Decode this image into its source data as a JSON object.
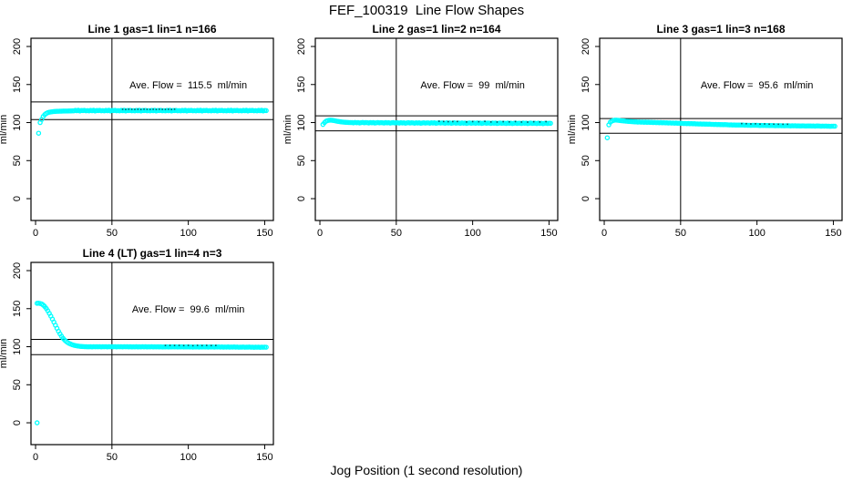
{
  "figure": {
    "title": "FEF_100319  Line Flow Shapes",
    "xlabel": "Jog Position (1 second resolution)",
    "background_color": "#ffffff",
    "marker_color": "#00ffff",
    "line_color": "#000000",
    "speck_color": "#00606a"
  },
  "axes": {
    "x_ticks": [
      0,
      50,
      100,
      150
    ],
    "y_ticks": [
      0,
      50,
      100,
      150,
      200
    ],
    "ylabel": "ml/min",
    "x_range": [
      -3,
      155.7
    ],
    "y_range": [
      -28.7,
      210.8
    ],
    "grid": false
  },
  "chart_data": [
    {
      "type": "scatter",
      "title": "Line 1 gas=1 lin=1 n=166",
      "annotation": "Ave. Flow =  115.5  ml/min",
      "ave_flow_ml_min": 115.5,
      "ref_lines_y": [
        127.05,
        103.95
      ],
      "vline_x": 50,
      "x_start": 2,
      "y": [
        86,
        100,
        104,
        108,
        110.5,
        112,
        113,
        113.6,
        114,
        114.3,
        114.5,
        114.7,
        114.8,
        114.9,
        115,
        115,
        115.1,
        115.1,
        115.2,
        115.2,
        115.3,
        115.3,
        115.4,
        115.4,
        116,
        115.6,
        116.2,
        115.3,
        115.9,
        115.7,
        116.1,
        115.5,
        115.8,
        115.4,
        116,
        115.6,
        116.2,
        115.3,
        115.9,
        115.7,
        116.1,
        115.5,
        115.8,
        115.4,
        116,
        115.6,
        116.2,
        115.3,
        115.9,
        115.7,
        116.1,
        115.5,
        115.8,
        115.4,
        116,
        115.6,
        116.2,
        115.3,
        115.9,
        115.7,
        116.1,
        115.5,
        115.8,
        115.4,
        116,
        115.6,
        116.2,
        115.3,
        115.9,
        115.7,
        116.1,
        115.5,
        115.8,
        115.4,
        116,
        115.6,
        116.2,
        115.3,
        115.9,
        115.7,
        116.1,
        115.5,
        115.8,
        115.4,
        116,
        115.6,
        116.2,
        115.3,
        115.9,
        115.7,
        116.1,
        115.5,
        115.8,
        115.4,
        116,
        115.6,
        116.2,
        115.3,
        115.9,
        115.7,
        116.1,
        115.5,
        115.8,
        115.4,
        116,
        115.6,
        116.2,
        115.3,
        115.9,
        115.7,
        116.1,
        115.5,
        115.8,
        115.4,
        116,
        115.6,
        116.2,
        115.3,
        115.9,
        115.7,
        116.1,
        115.5,
        115.8,
        115.4,
        116,
        115.6,
        116.2,
        115.3,
        115.9,
        115.7,
        116.1,
        115.5,
        115.8,
        115.4,
        116,
        115.6,
        116.2,
        115.3,
        115.9,
        115.7,
        116.1,
        115.5,
        115.8,
        115.4,
        116,
        115.6,
        116.2,
        115.3,
        115.9,
        115.7
      ],
      "extra_points": [],
      "specks_x": [
        57,
        59,
        61,
        63,
        65,
        67,
        69,
        71,
        73,
        75,
        77,
        79,
        81,
        83,
        85,
        87,
        89,
        91
      ]
    },
    {
      "type": "scatter",
      "title": "Line 2 gas=1 lin=2 n=164",
      "annotation": "Ave. Flow =  99  ml/min",
      "ave_flow_ml_min": 99,
      "ref_lines_y": [
        108.9,
        89.1
      ],
      "vline_x": 50,
      "x_start": 2,
      "y": [
        97.5,
        100,
        101.8,
        102.6,
        103,
        103.1,
        103,
        102.7,
        102.3,
        101.9,
        101.5,
        101.2,
        100.9,
        100.7,
        100.5,
        100.3,
        100.2,
        100.1,
        100,
        100,
        99.6,
        100.2,
        99.8,
        100.1,
        99.5,
        99.9,
        100.2,
        99.7,
        100,
        99.9,
        99.5,
        100.1,
        99.7,
        100,
        99.4,
        99.8,
        100.1,
        99.6,
        99.9,
        99.8,
        99.4,
        100,
        99.6,
        99.9,
        99.3,
        99.7,
        100,
        99.5,
        99.8,
        99.7,
        99.3,
        99.9,
        99.5,
        99.8,
        99.2,
        99.6,
        99.9,
        99.4,
        99.7,
        99.6,
        99.2,
        99.8,
        99.4,
        99.7,
        99.1,
        99.5,
        99.8,
        99.3,
        99.6,
        99.6,
        99.2,
        99.8,
        99.4,
        99.7,
        99.1,
        99.5,
        99.8,
        99.3,
        99.6,
        99.5,
        99.1,
        99.7,
        99.3,
        99.6,
        99,
        99.4,
        99.7,
        99.2,
        99.5,
        99.4,
        99,
        99.6,
        99.2,
        99.5,
        98.9,
        99.3,
        99.6,
        99.1,
        99.4,
        99.4,
        99,
        99.6,
        99.2,
        99.5,
        98.9,
        99.3,
        99.6,
        99.1,
        99.4,
        99.3,
        98.9,
        99.5,
        99.1,
        99.4,
        98.8,
        99.2,
        99.5,
        99,
        99.3,
        99.2,
        98.8,
        99.4,
        99,
        99.3,
        98.7,
        99.1,
        99.4,
        98.9,
        99.2,
        99.2,
        98.8,
        99.4,
        99,
        99.3,
        98.7,
        99.1,
        99.4,
        98.9,
        99.2,
        99.1,
        98.7,
        99.3,
        98.9,
        99.2,
        98.6,
        99,
        99.3,
        98.8,
        99.1,
        99
      ],
      "extra_points": [],
      "specks_x": [
        78,
        81,
        84,
        87,
        90,
        96,
        100,
        104,
        108,
        112,
        116,
        120,
        124,
        128,
        132,
        136,
        140,
        144,
        148
      ]
    },
    {
      "type": "scatter",
      "title": "Line 3 gas=1 lin=3 n=168",
      "annotation": "Ave. Flow =  95.6  ml/min",
      "ave_flow_ml_min": 95.6,
      "ref_lines_y": [
        105.2,
        86.0
      ],
      "vline_x": 50,
      "x_start": 2,
      "y": [
        80,
        97,
        100.5,
        102,
        102.8,
        103.2,
        103.2,
        103,
        102.8,
        102.5,
        102.3,
        102.1,
        101.9,
        101.7,
        101.5,
        101.4,
        101.2,
        101.1,
        100.9,
        100.9,
        100.6,
        100.8,
        100.5,
        100.7,
        100.4,
        100.6,
        100.3,
        100.5,
        100.2,
        100.3,
        100,
        100.2,
        99.9,
        100.1,
        99.8,
        100,
        99.7,
        99.9,
        99.6,
        99.7,
        99.4,
        99.6,
        99.3,
        99.5,
        99.2,
        99.4,
        99.1,
        99.2,
        99,
        99,
        98.7,
        98.9,
        98.6,
        98.8,
        98.5,
        98.7,
        98.4,
        98.5,
        98.3,
        98.3,
        98.1,
        98.2,
        98,
        98.1,
        97.9,
        98,
        97.8,
        97.9,
        97.7,
        97.7,
        97.5,
        97.6,
        97.4,
        97.5,
        97.3,
        97.4,
        97.2,
        97.3,
        97.2,
        97.1,
        96.9,
        97,
        96.8,
        96.9,
        96.7,
        96.8,
        96.7,
        96.8,
        96.8,
        96.7,
        96.5,
        96.6,
        96.4,
        96.5,
        96.3,
        96.5,
        96.4,
        96.5,
        96.4,
        96.3,
        96.1,
        96.3,
        96.2,
        96.3,
        96.1,
        96.2,
        96,
        96.1,
        96.1,
        96,
        95.8,
        96,
        95.9,
        96,
        95.8,
        95.9,
        95.7,
        95.9,
        95.9,
        95.8,
        95.6,
        95.8,
        95.7,
        95.8,
        95.6,
        95.7,
        95.5,
        95.6,
        95.7,
        95.6,
        95.4,
        95.6,
        95.5,
        95.6,
        95.4,
        95.5,
        95.3,
        95.5,
        95.5,
        95.4,
        95.2,
        95.4,
        95.3,
        95.4,
        95.2,
        95.3,
        95.1,
        95.3,
        95.2,
        95.2
      ],
      "extra_points": [],
      "specks_x": [
        90,
        93,
        96,
        99,
        102,
        105,
        108,
        111,
        114,
        117,
        120
      ]
    },
    {
      "type": "scatter",
      "title": "Line 4 (LT) gas=1 lin=4 n=3",
      "annotation": "Ave. Flow =  99.6  ml/min",
      "ave_flow_ml_min": 99.6,
      "ref_lines_y": [
        109.6,
        89.6
      ],
      "vline_x": 50,
      "x_start": 1,
      "y": [
        157,
        157.2,
        156.8,
        156.2,
        154.8,
        152.8,
        150.3,
        147.3,
        143.8,
        140.2,
        136.3,
        132.3,
        128.2,
        124.2,
        120.3,
        116.8,
        113.7,
        111,
        108.8,
        107,
        105.5,
        104.3,
        103.4,
        102.6,
        102,
        101.5,
        101.1,
        100.8,
        100.5,
        100.3,
        100.2,
        100.1,
        100,
        99.9,
        99.9,
        100,
        99.8,
        100.1,
        99.9,
        100,
        99.9,
        100.1,
        99.8,
        100,
        99.9,
        100.1,
        99.8,
        100,
        99.9,
        100,
        99.9,
        100.1,
        99.8,
        100,
        99.9,
        100,
        99.8,
        100.1,
        99.9,
        100,
        99.8,
        100,
        99.7,
        99.9,
        99.8,
        100,
        99.7,
        99.9,
        99.8,
        100,
        99.8,
        100,
        99.7,
        99.9,
        99.8,
        100,
        99.7,
        99.9,
        99.8,
        99.9,
        99.7,
        99.9,
        99.6,
        99.8,
        99.7,
        99.9,
        99.6,
        99.8,
        99.7,
        99.9,
        99.7,
        99.9,
        99.6,
        99.8,
        99.7,
        99.9,
        99.6,
        99.8,
        99.7,
        99.8,
        99.6,
        99.8,
        99.5,
        99.7,
        99.6,
        99.8,
        99.5,
        99.7,
        99.6,
        99.8,
        99.6,
        99.8,
        99.5,
        99.7,
        99.6,
        99.8,
        99.5,
        99.7,
        99.6,
        99.7,
        99.5,
        99.7,
        99.4,
        99.6,
        99.5,
        99.7,
        99.4,
        99.6,
        99.5,
        99.7,
        99.4,
        99.6,
        99.3,
        99.5,
        99.4,
        99.6,
        99.3,
        99.5,
        99.4,
        99.6,
        99.3,
        99.5,
        99.2,
        99.4,
        99.3,
        99.5,
        99.2,
        99.4,
        99.3,
        99.4,
        99.3
      ],
      "extra_points": [
        [
          1,
          0
        ]
      ],
      "specks_x": [
        85,
        88,
        91,
        94,
        97,
        100,
        103,
        106,
        109,
        112,
        115,
        118
      ]
    }
  ]
}
